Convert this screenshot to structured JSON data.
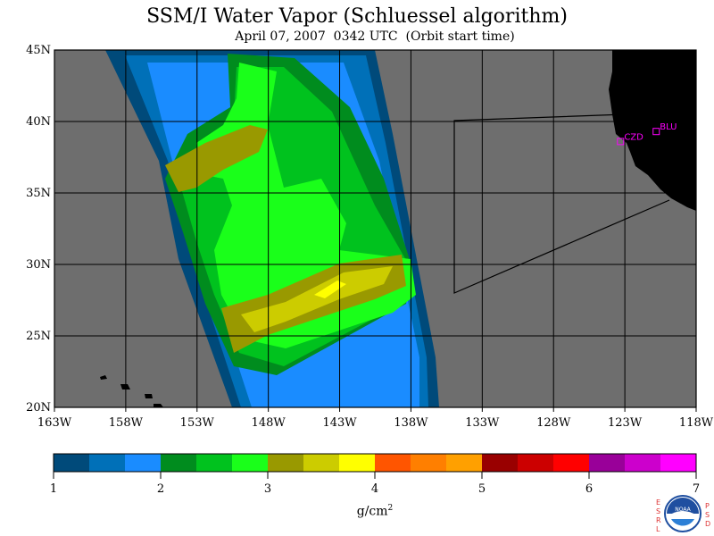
{
  "title": "SSM/I Water Vapor (Schluessel algorithm)",
  "subtitle": "April 07, 2007  0342 UTC  (Orbit start time)",
  "map": {
    "lon_range": [
      -163,
      -118
    ],
    "lat_range": [
      20,
      45
    ],
    "lon_ticks": [
      {
        "value": -163,
        "label": "163W"
      },
      {
        "value": -158,
        "label": "158W"
      },
      {
        "value": -153,
        "label": "153W"
      },
      {
        "value": -148,
        "label": "148W"
      },
      {
        "value": -143,
        "label": "143W"
      },
      {
        "value": -138,
        "label": "138W"
      },
      {
        "value": -133,
        "label": "133W"
      },
      {
        "value": -128,
        "label": "128W"
      },
      {
        "value": -123,
        "label": "123W"
      },
      {
        "value": -118,
        "label": "118W"
      }
    ],
    "lat_ticks": [
      {
        "value": 20,
        "label": "20N"
      },
      {
        "value": 25,
        "label": "25N"
      },
      {
        "value": 30,
        "label": "30N"
      },
      {
        "value": 35,
        "label": "35N"
      },
      {
        "value": 40,
        "label": "40N"
      },
      {
        "value": 45,
        "label": "45N"
      }
    ],
    "stations": [
      {
        "label": "CZD",
        "lon": -123.3,
        "lat": 38.6
      },
      {
        "label": "BLU",
        "lon": -120.8,
        "lat": 39.3
      }
    ],
    "colors": {
      "ocean": "#6e6e6e",
      "land": "#000000",
      "grid": "#000000",
      "station": "#ff00ff"
    }
  },
  "colorbar": {
    "ticks": [
      "1",
      "2",
      "3",
      "4",
      "5",
      "6",
      "7"
    ],
    "min": 1,
    "max": 7,
    "colors": [
      "#004a7a",
      "#0070b8",
      "#1a8cff",
      "#008c1e",
      "#00c21e",
      "#1aff1a",
      "#999900",
      "#cccc00",
      "#ffff00",
      "#ff5500",
      "#ff7f00",
      "#ffa000",
      "#990000",
      "#cc0000",
      "#ff0000",
      "#990099",
      "#cc00cc",
      "#ff00ff"
    ],
    "units_base": "g/cm",
    "units_sup": "2"
  },
  "logo": {
    "left_letters": [
      "E",
      "S",
      "R",
      "L"
    ],
    "right_letters": [
      "P",
      "S",
      "D"
    ],
    "text": "NOAA"
  }
}
